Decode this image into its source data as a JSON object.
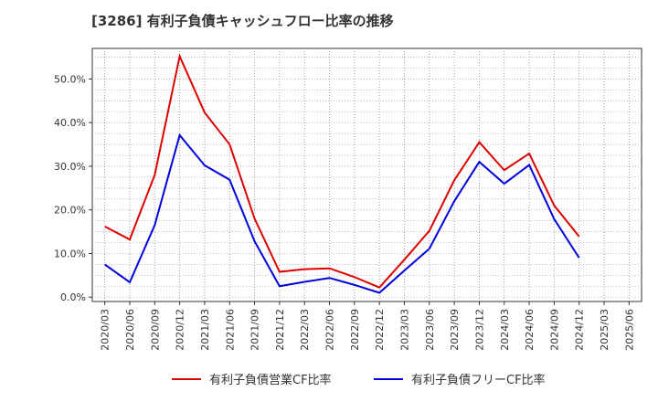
{
  "chart_data": {
    "type": "line",
    "title": "[3286]  有利子負債キャッシュフロー比率の推移",
    "x": [
      "2020/03",
      "2020/06",
      "2020/09",
      "2020/12",
      "2021/03",
      "2021/06",
      "2021/09",
      "2021/12",
      "2022/03",
      "2022/06",
      "2022/09",
      "2022/12",
      "2023/03",
      "2023/06",
      "2023/09",
      "2023/12",
      "2024/03",
      "2024/06",
      "2024/09",
      "2024/12",
      "2025/03",
      "2025/06"
    ],
    "ylim": [
      -1,
      57
    ],
    "yticks": [
      0,
      10,
      20,
      30,
      40,
      50
    ],
    "ytick_labels": [
      "0.0%",
      "10.0%",
      "20.0%",
      "30.0%",
      "40.0%",
      "50.0%"
    ],
    "grid": true,
    "legend_position": "bottom",
    "series": [
      {
        "name": "有利子負債営業CF比率",
        "color": "#dd0000",
        "values": [
          16.2,
          13.2,
          28.0,
          55.2,
          42.3,
          35.0,
          18.0,
          5.8,
          6.4,
          6.6,
          4.6,
          2.2,
          8.6,
          15.2,
          26.8,
          35.5,
          29.1,
          32.9,
          21.0,
          13.9,
          null,
          null
        ]
      },
      {
        "name": "有利子負債フリーCF比率",
        "color": "#0000dd",
        "values": [
          7.5,
          3.4,
          16.5,
          37.1,
          30.2,
          26.9,
          12.8,
          2.5,
          3.5,
          4.4,
          2.8,
          1.0,
          6.1,
          11.1,
          22.0,
          31.0,
          26.0,
          30.3,
          17.9,
          9.0,
          null,
          null
        ]
      }
    ]
  }
}
